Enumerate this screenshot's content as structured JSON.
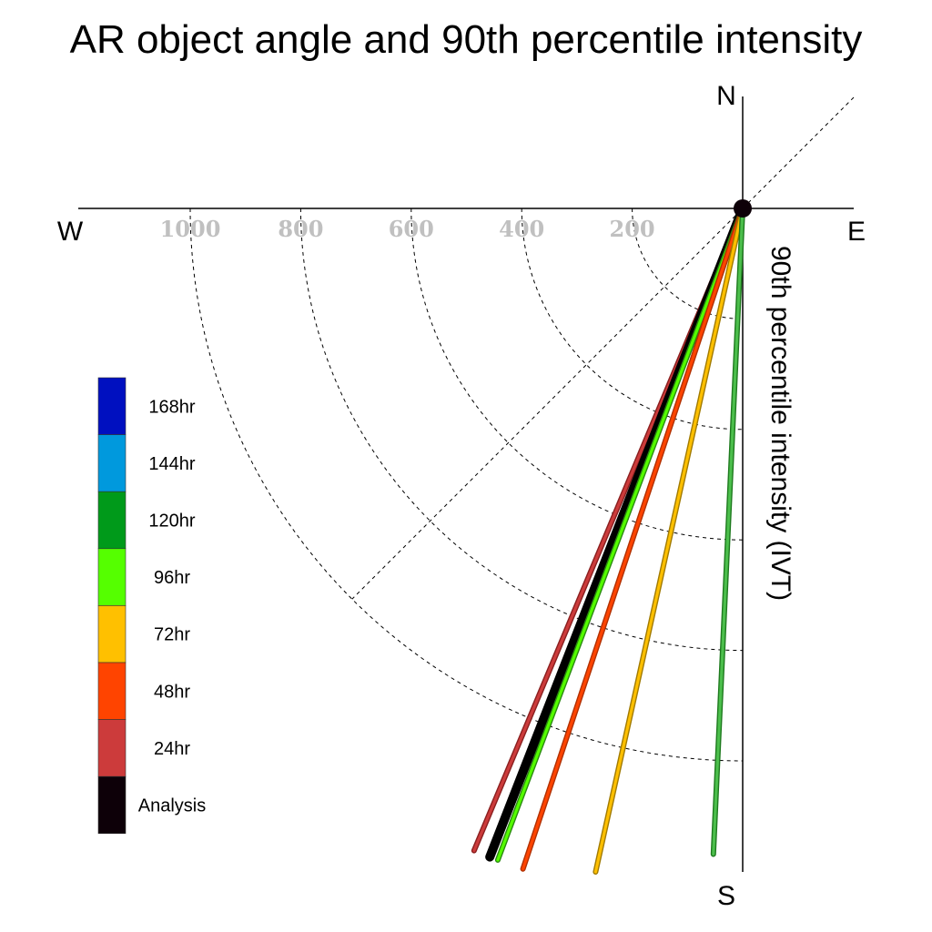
{
  "chart_data": {
    "type": "line",
    "title": "AR object angle and 90th percentile intensity",
    "ylabel": "90th percentile intensity (IVT)",
    "compass": {
      "north": "N",
      "south": "S",
      "east": "E",
      "west": "W"
    },
    "radial_ticks": [
      {
        "value": 200,
        "label": "200"
      },
      {
        "value": 400,
        "label": "400"
      },
      {
        "value": 600,
        "label": "600"
      },
      {
        "value": 800,
        "label": "800"
      },
      {
        "value": 1000,
        "label": "1000"
      }
    ],
    "radial_max": 1200,
    "grid": true,
    "legend": {
      "position": "left",
      "items": [
        {
          "name": "168hr",
          "color": "#0010c0"
        },
        {
          "name": "144hr",
          "color": "#0099dd"
        },
        {
          "name": "120hr",
          "color": "#009a1a"
        },
        {
          "name": "96hr",
          "color": "#55ff00"
        },
        {
          "name": "72hr",
          "color": "#ffc000"
        },
        {
          "name": "48hr",
          "color": "#ff4400"
        },
        {
          "name": "24hr",
          "color": "#cc3b3b"
        },
        {
          "name": "Analysis",
          "color": "#0d0008"
        }
      ]
    },
    "series": [
      {
        "name": "24hr",
        "color": "#cc3b3b",
        "stroke": "#8a1f1f",
        "angle_deg_from_south": 22.7,
        "intensity": 1260
      },
      {
        "name": "Analysis",
        "color": "#000000",
        "stroke": "#000000",
        "angle_deg_from_south": 21.3,
        "intensity": 1260
      },
      {
        "name": "96hr",
        "color": "#55ff00",
        "stroke": "#2a8a10",
        "angle_deg_from_south": 20.6,
        "intensity": 1260
      },
      {
        "name": "48hr",
        "color": "#ff4400",
        "stroke": "#b03000",
        "angle_deg_from_south": 18.4,
        "intensity": 1260
      },
      {
        "name": "72hr",
        "color": "#ffc000",
        "stroke": "#a07a00",
        "angle_deg_from_south": 12.5,
        "intensity": 1260
      },
      {
        "name": "120hr",
        "color": "#4cbf4c",
        "stroke": "#1e7a1e",
        "angle_deg_from_south": 2.6,
        "intensity": 1170
      }
    ]
  }
}
